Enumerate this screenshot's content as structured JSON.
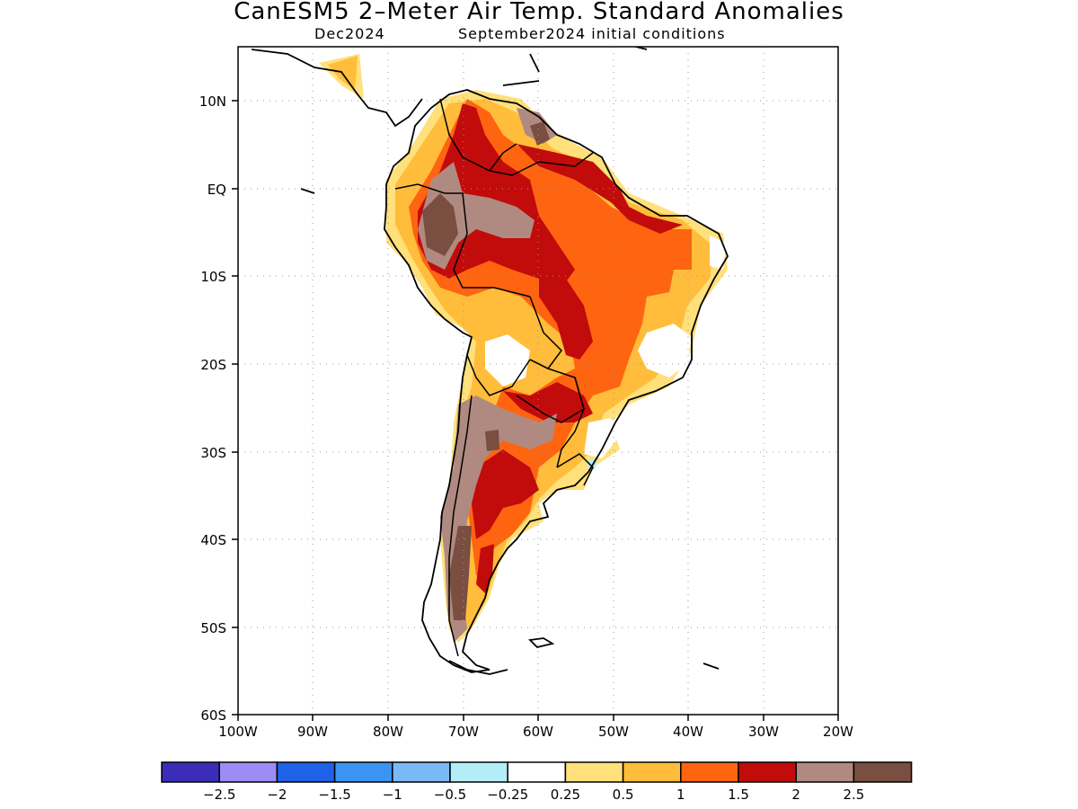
{
  "title": "CanESM5 2–Meter Air Temp. Standard Anomalies",
  "subtitle_left": "Dec2024",
  "subtitle_right": "September2024 initial conditions",
  "lat_labels": [
    "10N",
    "EQ",
    "10S",
    "20S",
    "30S",
    "40S",
    "50S",
    "60S"
  ],
  "lon_labels": [
    "100W",
    "90W",
    "80W",
    "70W",
    "60W",
    "50W",
    "40W",
    "30W",
    "20W"
  ],
  "colorbar": {
    "labels": [
      "−2.5",
      "−2",
      "−1.5",
      "−1",
      "−0.5",
      "−0.25",
      "0.25",
      "0.5",
      "1",
      "1.5",
      "2",
      "2.5"
    ],
    "colors": [
      "#3c2db8",
      "#9d8cf5",
      "#1f62e8",
      "#3b94f2",
      "#79b9f5",
      "#b3eef8",
      "#ffffff",
      "#ffe07a",
      "#ffbd3b",
      "#ff6410",
      "#c20b0b",
      "#b08a80",
      "#7a4e40"
    ]
  }
}
